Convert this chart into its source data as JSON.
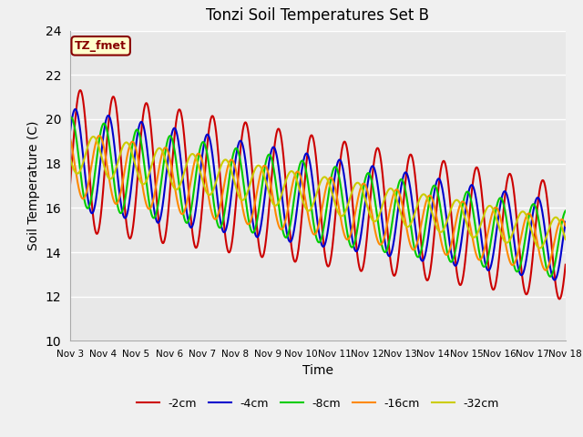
{
  "title": "Tonzi Soil Temperatures Set B",
  "xlabel": "Time",
  "ylabel": "Soil Temperature (C)",
  "ylim": [
    10,
    24
  ],
  "xlim": [
    0,
    15
  ],
  "plot_background": "#e8e8e8",
  "annotation_text": "TZ_fmet",
  "annotation_bg": "#ffffcc",
  "annotation_border": "#880000",
  "legend": [
    "-2cm",
    "-4cm",
    "-8cm",
    "-16cm",
    "-32cm"
  ],
  "colors": [
    "#cc0000",
    "#0000cc",
    "#00cc00",
    "#ff8800",
    "#cccc00"
  ],
  "line_width": 1.5,
  "x_tick_labels": [
    "Nov 3",
    "Nov 4",
    "Nov 5",
    "Nov 6",
    "Nov 7",
    "Nov 8",
    "Nov 9",
    "Nov 10",
    "Nov 11",
    "Nov 12",
    "Nov 13",
    "Nov 14",
    "Nov 15",
    "Nov 16",
    "Nov 17",
    "Nov 18"
  ],
  "x_tick_positions": [
    0,
    1,
    2,
    3,
    4,
    5,
    6,
    7,
    8,
    9,
    10,
    11,
    12,
    13,
    14,
    15
  ]
}
